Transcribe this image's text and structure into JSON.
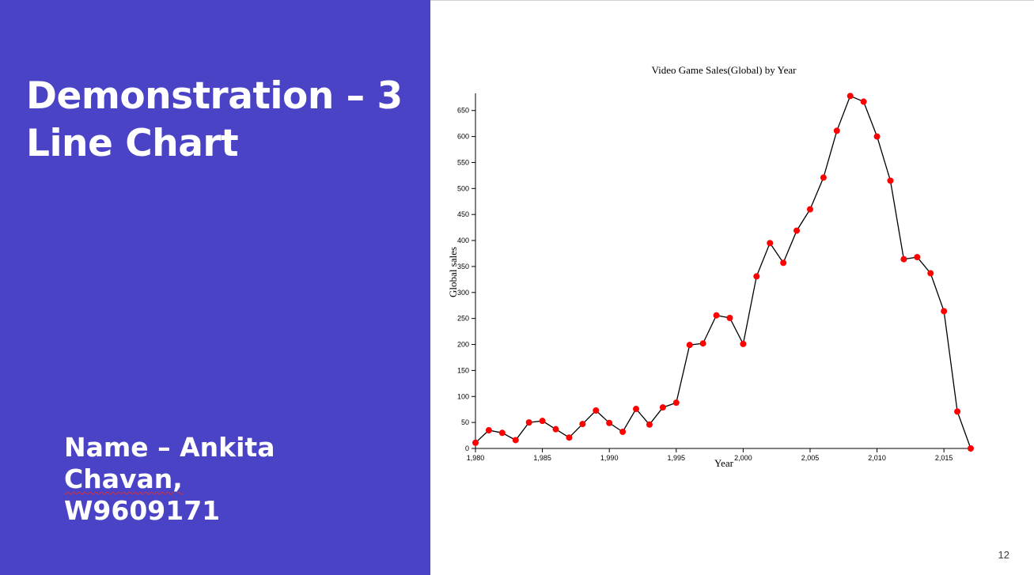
{
  "slide": {
    "title_line1": "Demonstration – 3",
    "title_line2": "Line Chart",
    "author_line1": "Name – Ankita",
    "author_line2_underlined": "Chavan,",
    "author_line2_rest": " W9609171",
    "page_number": "12",
    "panel_color": "#4a43c5"
  },
  "chart_data": {
    "type": "line",
    "title": "Video Game Sales(Global) by Year",
    "xlabel": "Year",
    "ylabel": "Global sales",
    "x": [
      1980,
      1981,
      1982,
      1983,
      1984,
      1985,
      1986,
      1987,
      1988,
      1989,
      1990,
      1991,
      1992,
      1993,
      1994,
      1995,
      1996,
      1997,
      1998,
      1999,
      2000,
      2001,
      2002,
      2003,
      2004,
      2005,
      2006,
      2007,
      2008,
      2009,
      2010,
      2011,
      2012,
      2013,
      2014,
      2015,
      2016,
      2017
    ],
    "series": [
      {
        "values": [
          11,
          35,
          30,
          16,
          50,
          53,
          37,
          21,
          47,
          73,
          49,
          32,
          76,
          46,
          79,
          88,
          199,
          202,
          256,
          251,
          201,
          331,
          395,
          357,
          419,
          460,
          521,
          611,
          678,
          667,
          600,
          515,
          364,
          368,
          337,
          264,
          71,
          0
        ],
        "line_color": "#000000",
        "marker_color": "#ff0000"
      }
    ],
    "xlim": [
      1980,
      2017
    ],
    "ylim": [
      0,
      680
    ],
    "x_ticks": [
      1980,
      1985,
      1990,
      1995,
      2000,
      2005,
      2010,
      2015
    ],
    "x_tick_labels": [
      "1,980",
      "1,985",
      "1,990",
      "1,995",
      "2,000",
      "2,005",
      "2,010",
      "2,015"
    ],
    "y_ticks": [
      0,
      50,
      100,
      150,
      200,
      250,
      300,
      350,
      400,
      450,
      500,
      550,
      600,
      650
    ],
    "y_tick_labels": [
      "0",
      "50",
      "100",
      "150",
      "200",
      "250",
      "300",
      "350",
      "400",
      "450",
      "500",
      "550",
      "600",
      "650"
    ],
    "grid": false
  }
}
